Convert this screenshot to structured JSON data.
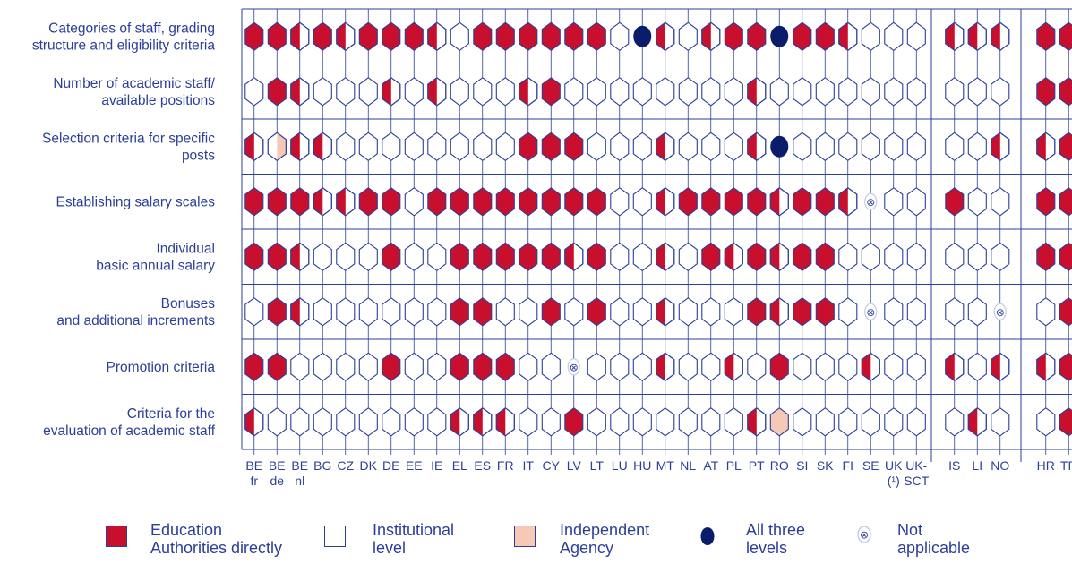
{
  "colors": {
    "education": "#c8102e",
    "institutional": "#ffffff",
    "agency": "#f6c9b6",
    "all_three": "#0a1d6b",
    "grid": "#2b3f99",
    "text": "#2b3f99"
  },
  "chart_data": {
    "type": "table",
    "rows": [
      [
        "Categories of staff, grading",
        "structure and eligibility criteria"
      ],
      [
        "Number of academic staff/",
        "available positions"
      ],
      [
        "Selection criteria for specific",
        "posts"
      ],
      [
        "Establishing salary scales"
      ],
      [
        "Individual",
        "basic annual salary"
      ],
      [
        "Bonuses",
        "and additional increments"
      ],
      [
        "Promotion criteria"
      ],
      [
        "Criteria for the",
        "evaluation of academic staff"
      ]
    ],
    "groups": [
      [
        "BE fr",
        "BE de",
        "BE nl",
        "BG",
        "CZ",
        "DK",
        "DE",
        "EE",
        "IE",
        "EL",
        "ES",
        "FR",
        "IT",
        "CY",
        "LV",
        "LT",
        "LU",
        "HU",
        "MT",
        "NL",
        "AT",
        "PL",
        "PT",
        "RO",
        "SI",
        "SK",
        "FI",
        "SE",
        "UK (1)",
        "UK-SCT"
      ],
      [
        "IS",
        "LI",
        "NO"
      ],
      [
        "HR",
        "TR"
      ]
    ],
    "columns": [
      [
        "BE",
        "fr"
      ],
      [
        "BE",
        "de"
      ],
      [
        "BE",
        "nl"
      ],
      [
        "BG"
      ],
      [
        "CZ"
      ],
      [
        "DK"
      ],
      [
        "DE"
      ],
      [
        "EE"
      ],
      [
        "IE"
      ],
      [
        "EL"
      ],
      [
        "ES"
      ],
      [
        "FR"
      ],
      [
        "IT"
      ],
      [
        "CY"
      ],
      [
        "LV"
      ],
      [
        "LT"
      ],
      [
        "LU"
      ],
      [
        "HU"
      ],
      [
        "MT"
      ],
      [
        "NL"
      ],
      [
        "AT"
      ],
      [
        "PL"
      ],
      [
        "PT"
      ],
      [
        "RO"
      ],
      [
        "SI"
      ],
      [
        "SK"
      ],
      [
        "FI"
      ],
      [
        "SE"
      ],
      [
        "UK",
        "(¹)"
      ],
      [
        "UK-",
        "SCT"
      ],
      [
        "IS"
      ],
      [
        "LI"
      ],
      [
        "NO"
      ],
      [
        "HR"
      ],
      [
        "TR"
      ]
    ],
    "codes_legend": {
      "F": "Education Authorities directly",
      "W": "Institutional level",
      "H": "half Education Authorities directly / half Institutional level",
      "A": "Independent Agency",
      "Q": "half Institutional level / half Independent Agency",
      "D": "All three levels",
      "X": "Not applicable"
    },
    "values": [
      [
        "F",
        "F",
        "H",
        "F",
        "H",
        "F",
        "F",
        "F",
        "H",
        "W",
        "F",
        "F",
        "F",
        "F",
        "F",
        "F",
        "W",
        "D",
        "H",
        "W",
        "H",
        "F",
        "F",
        "D",
        "F",
        "F",
        "H",
        "W",
        "W",
        "W",
        "H",
        "H",
        "H",
        "F",
        "F"
      ],
      [
        "W",
        "F",
        "H",
        "W",
        "W",
        "W",
        "H",
        "W",
        "H",
        "W",
        "W",
        "W",
        "H",
        "F",
        "W",
        "W",
        "W",
        "W",
        "W",
        "W",
        "W",
        "W",
        "H",
        "W",
        "W",
        "W",
        "W",
        "W",
        "W",
        "W",
        "W",
        "W",
        "W",
        "F",
        "F"
      ],
      [
        "H",
        "Q",
        "H",
        "H",
        "W",
        "W",
        "W",
        "W",
        "W",
        "W",
        "W",
        "W",
        "F",
        "F",
        "F",
        "W",
        "W",
        "W",
        "H",
        "W",
        "W",
        "W",
        "H",
        "D",
        "W",
        "W",
        "W",
        "W",
        "W",
        "W",
        "W",
        "W",
        "H",
        "H",
        "F"
      ],
      [
        "F",
        "F",
        "F",
        "H",
        "H",
        "F",
        "F",
        "W",
        "F",
        "F",
        "F",
        "F",
        "F",
        "F",
        "F",
        "F",
        "W",
        "W",
        "H",
        "F",
        "F",
        "F",
        "F",
        "H",
        "F",
        "F",
        "H",
        "X",
        "W",
        "W",
        "F",
        "W",
        "W",
        "F",
        "F"
      ],
      [
        "F",
        "F",
        "H",
        "W",
        "W",
        "W",
        "F",
        "W",
        "W",
        "F",
        "F",
        "F",
        "F",
        "F",
        "H",
        "F",
        "W",
        "W",
        "H",
        "W",
        "F",
        "H",
        "F",
        "H",
        "F",
        "F",
        "W",
        "W",
        "W",
        "W",
        "W",
        "W",
        "W",
        "F",
        "F"
      ],
      [
        "W",
        "F",
        "H",
        "W",
        "W",
        "W",
        "W",
        "W",
        "W",
        "F",
        "F",
        "W",
        "W",
        "F",
        "W",
        "F",
        "W",
        "W",
        "H",
        "W",
        "W",
        "W",
        "F",
        "H",
        "F",
        "F",
        "W",
        "X",
        "W",
        "W",
        "W",
        "W",
        "X",
        "W",
        "F"
      ],
      [
        "F",
        "F",
        "W",
        "W",
        "W",
        "W",
        "F",
        "W",
        "W",
        "F",
        "F",
        "F",
        "W",
        "W",
        "X",
        "W",
        "W",
        "W",
        "H",
        "W",
        "W",
        "H",
        "W",
        "F",
        "W",
        "W",
        "W",
        "H",
        "W",
        "W",
        "H",
        "W",
        "H",
        "H",
        "F"
      ],
      [
        "H",
        "W",
        "W",
        "W",
        "W",
        "W",
        "W",
        "W",
        "W",
        "H",
        "H",
        "H",
        "W",
        "W",
        "F",
        "W",
        "W",
        "W",
        "W",
        "W",
        "W",
        "W",
        "H",
        "A",
        "W",
        "W",
        "W",
        "W",
        "W",
        "W",
        "W",
        "H",
        "W",
        "W",
        "F"
      ]
    ]
  },
  "legend": [
    {
      "kind": "education",
      "lines": [
        "Education",
        "Authorities directly"
      ]
    },
    {
      "kind": "institutional",
      "lines": [
        "Institutional",
        "level"
      ]
    },
    {
      "kind": "agency",
      "lines": [
        "Independent",
        "Agency"
      ]
    },
    {
      "kind": "all_three",
      "lines": [
        "All three",
        "levels"
      ]
    },
    {
      "kind": "not_applicable",
      "lines": [
        "Not",
        "applicable"
      ]
    }
  ]
}
